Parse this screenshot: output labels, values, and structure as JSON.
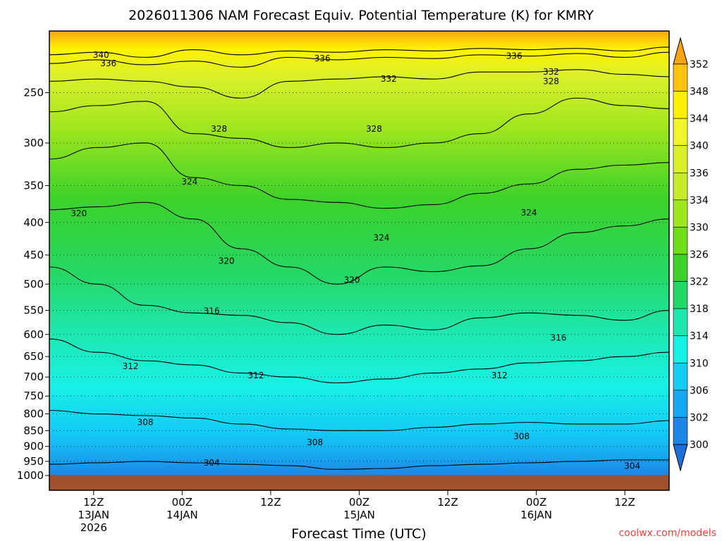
{
  "chart_data": {
    "type": "heatmap",
    "title": "2026011306 NAM Forecast Equiv. Potential Temperature (K) for KMRY",
    "xlabel": "Forecast Time (UTC)",
    "ylabel": "",
    "credit": "coolwx.com/models",
    "x_ticks": [
      {
        "hour": 6,
        "l1": "12Z",
        "l2": "13JAN",
        "l3": "2026"
      },
      {
        "hour": 18,
        "l1": "00Z",
        "l2": "14JAN",
        "l3": ""
      },
      {
        "hour": 30,
        "l1": "12Z",
        "l2": "",
        "l3": ""
      },
      {
        "hour": 42,
        "l1": "00Z",
        "l2": "15JAN",
        "l3": ""
      },
      {
        "hour": 54,
        "l1": "12Z",
        "l2": "",
        "l3": ""
      },
      {
        "hour": 66,
        "l1": "00Z",
        "l2": "16JAN",
        "l3": ""
      },
      {
        "hour": 78,
        "l1": "12Z",
        "l2": "",
        "l3": ""
      }
    ],
    "x_range_hours": [
      0,
      84
    ],
    "y_ticks_hpa": [
      250,
      300,
      350,
      400,
      450,
      500,
      550,
      600,
      650,
      700,
      750,
      800,
      850,
      900,
      950,
      1000
    ],
    "y_range_hpa": [
      200,
      1005
    ],
    "colorbar_levels": [
      352,
      348,
      344,
      340,
      336,
      334,
      330,
      326,
      322,
      318,
      314,
      310,
      306,
      302,
      300
    ],
    "colorbar_colors": [
      "#f7a412",
      "#ffc20e",
      "#fff200",
      "#f2f52a",
      "#dcf02a",
      "#c6eb28",
      "#9fe61e",
      "#6fdd18",
      "#3cd22a",
      "#25d866",
      "#1ee8b0",
      "#18f0e6",
      "#13cdf6",
      "#18a6ee",
      "#1c86e8",
      "#1f6fd8"
    ],
    "contours": [
      {
        "level": 340,
        "hpa": [
          218,
          216,
          220,
          214,
          218,
          215,
          216,
          214,
          215,
          213,
          214,
          213,
          215,
          212
        ]
      },
      {
        "level": 336,
        "hpa": [
          225,
          222,
          226,
          223,
          228,
          220,
          222,
          220,
          221,
          218,
          219,
          217,
          220,
          216
        ]
      },
      {
        "level": 332,
        "hpa": [
          240,
          238,
          240,
          245,
          255,
          240,
          238,
          236,
          238,
          232,
          232,
          230,
          234,
          236
        ]
      },
      {
        "level": 328,
        "hpa": [
          268,
          262,
          258,
          290,
          295,
          305,
          300,
          305,
          300,
          290,
          270,
          255,
          262,
          265
        ]
      },
      {
        "level": 324,
        "hpa": [
          318,
          305,
          300,
          340,
          350,
          368,
          372,
          380,
          375,
          360,
          348,
          330,
          325,
          322
        ]
      },
      {
        "level": 320,
        "hpa": [
          382,
          378,
          372,
          395,
          440,
          470,
          500,
          470,
          478,
          468,
          440,
          415,
          405,
          395
        ]
      },
      {
        "level": 316,
        "hpa": [
          470,
          500,
          540,
          555,
          560,
          575,
          600,
          580,
          590,
          565,
          555,
          560,
          570,
          550
        ]
      },
      {
        "level": 312,
        "hpa": [
          610,
          640,
          660,
          670,
          690,
          700,
          715,
          705,
          690,
          680,
          665,
          660,
          650,
          640
        ]
      },
      {
        "level": 308,
        "hpa": [
          790,
          800,
          805,
          812,
          830,
          845,
          850,
          850,
          840,
          830,
          825,
          830,
          830,
          820
        ]
      },
      {
        "level": 304,
        "hpa": [
          960,
          955,
          950,
          955,
          960,
          965,
          978,
          975,
          965,
          960,
          955,
          950,
          945,
          945
        ]
      }
    ],
    "contour_hours": [
      0,
      6.5,
      13,
      19.5,
      26,
      32.5,
      39,
      45.5,
      52,
      58.5,
      65,
      71.5,
      78,
      84
    ],
    "contour_labels": [
      {
        "level": "340",
        "hour": 7,
        "hpa": 218
      },
      {
        "level": "336",
        "hour": 8,
        "hpa": 225
      },
      {
        "level": "336",
        "hour": 37,
        "hpa": 221
      },
      {
        "level": "336",
        "hour": 63,
        "hpa": 219
      },
      {
        "level": "332",
        "hour": 46,
        "hpa": 238
      },
      {
        "level": "332",
        "hour": 68,
        "hpa": 232
      },
      {
        "level": "328",
        "hour": 23,
        "hpa": 285
      },
      {
        "level": "328",
        "hour": 44,
        "hpa": 285
      },
      {
        "level": "328",
        "hour": 68,
        "hpa": 240
      },
      {
        "level": "324",
        "hour": 19,
        "hpa": 345
      },
      {
        "level": "324",
        "hour": 45,
        "hpa": 423
      },
      {
        "level": "324",
        "hour": 65,
        "hpa": 386
      },
      {
        "level": "320",
        "hour": 4,
        "hpa": 387
      },
      {
        "level": "320",
        "hour": 24,
        "hpa": 460
      },
      {
        "level": "320",
        "hour": 41,
        "hpa": 493
      },
      {
        "level": "316",
        "hour": 22,
        "hpa": 551
      },
      {
        "level": "316",
        "hour": 69,
        "hpa": 607
      },
      {
        "level": "312",
        "hour": 11,
        "hpa": 673
      },
      {
        "level": "312",
        "hour": 28,
        "hpa": 696
      },
      {
        "level": "312",
        "hour": 61,
        "hpa": 696
      },
      {
        "level": "308",
        "hour": 13,
        "hpa": 825
      },
      {
        "level": "308",
        "hour": 36,
        "hpa": 887
      },
      {
        "level": "308",
        "hour": 64,
        "hpa": 868
      },
      {
        "level": "304",
        "hour": 22,
        "hpa": 955
      },
      {
        "level": "304",
        "hour": 79,
        "hpa": 966
      }
    ]
  }
}
